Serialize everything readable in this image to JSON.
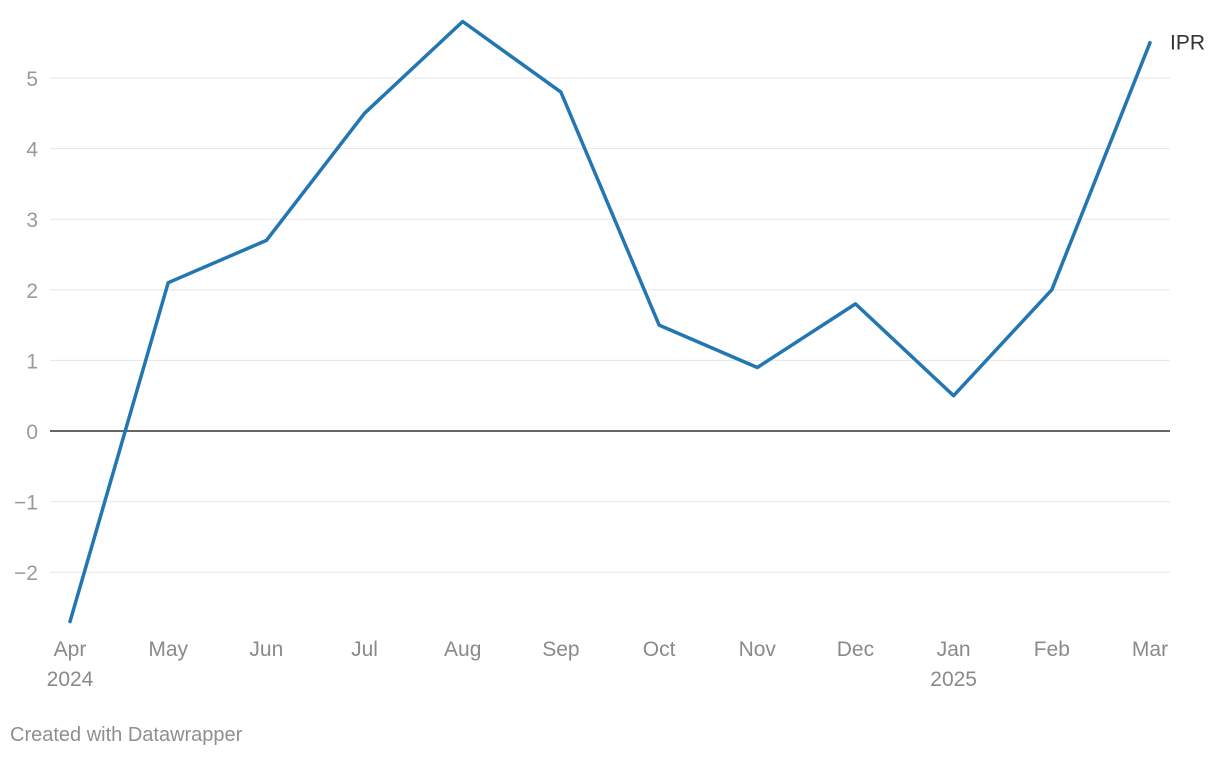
{
  "chart_data": {
    "type": "line",
    "x": [
      "Apr",
      "May",
      "Jun",
      "Jul",
      "Aug",
      "Sep",
      "Oct",
      "Nov",
      "Dec",
      "Jan",
      "Feb",
      "Mar"
    ],
    "x_year_labels": [
      {
        "index": 0,
        "label": "2024"
      },
      {
        "index": 9,
        "label": "2025"
      }
    ],
    "series": [
      {
        "name": "IPR",
        "color": "#2276b1",
        "values": [
          -2.7,
          2.1,
          2.7,
          4.5,
          5.8,
          4.8,
          1.5,
          0.9,
          1.8,
          0.5,
          2.0,
          5.5
        ]
      }
    ],
    "yticks": [
      -2,
      -1,
      0,
      1,
      2,
      3,
      4,
      5
    ],
    "ytick_labels": [
      "−2",
      "−1",
      "0",
      "1",
      "2",
      "3",
      "4",
      "5"
    ],
    "ylim": [
      -2.7,
      5.8
    ],
    "grid": true,
    "legend": "direct label at line end (right)",
    "title": "",
    "xlabel": "",
    "ylabel": ""
  },
  "footer": {
    "credit": "Created with Datawrapper"
  }
}
